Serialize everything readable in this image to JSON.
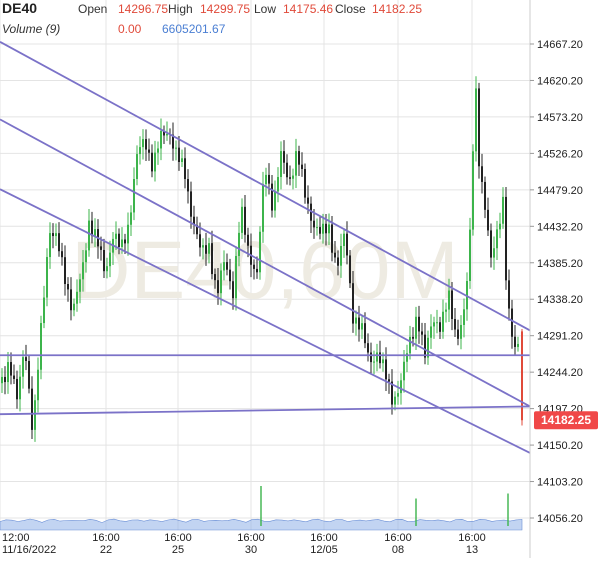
{
  "header": {
    "symbol": "DE40",
    "open_label": "Open",
    "open": "14296.75",
    "high_label": "High",
    "high": "14299.75",
    "low_label": "Low",
    "low": "14175.46",
    "close_label": "Close",
    "close": "14182.25",
    "volume_label": "Volume (9)",
    "volume_change": "0.00",
    "volume_value": "6605201.67"
  },
  "watermark": "DE40,60M",
  "colors": {
    "up": "#3cb44b",
    "down": "#222222",
    "trend_lines": "#7b72c8",
    "price_badge": "#f04848",
    "volume_area": "#8fb0e8",
    "grid": "#e4e4e4",
    "axis_text": "#222222"
  },
  "chart_data": {
    "type": "candlestick",
    "y_axis": {
      "position": "right",
      "range": [
        14030,
        14690
      ],
      "ticks": [
        "14667.20",
        "14620.20",
        "14573.20",
        "14526.20",
        "14479.20",
        "14432.20",
        "14385.20",
        "14338.20",
        "14291.20",
        "14244.20",
        "14197.20",
        "14150.20",
        "14103.20",
        "14056.20"
      ]
    },
    "x_axis": {
      "ticks": [
        {
          "label": "12:00",
          "sub": "11/16/2022",
          "x": 0
        },
        {
          "label": "16:00",
          "sub": "22",
          "x": 106
        },
        {
          "label": "16:00",
          "sub": "25",
          "x": 178
        },
        {
          "label": "16:00",
          "sub": "30",
          "x": 251
        },
        {
          "label": "16:00",
          "sub": "12/05",
          "x": 324
        },
        {
          "label": "16:00",
          "sub": "08",
          "x": 398
        },
        {
          "label": "16:00",
          "sub": "13",
          "x": 472
        }
      ]
    },
    "grid": true,
    "current_price": "14182.25",
    "price_path": [
      [
        0,
        14230
      ],
      [
        8,
        14260
      ],
      [
        16,
        14205
      ],
      [
        24,
        14285
      ],
      [
        32,
        14160
      ],
      [
        40,
        14300
      ],
      [
        48,
        14430
      ],
      [
        56,
        14410
      ],
      [
        64,
        14370
      ],
      [
        72,
        14320
      ],
      [
        80,
        14365
      ],
      [
        88,
        14440
      ],
      [
        96,
        14410
      ],
      [
        104,
        14375
      ],
      [
        112,
        14420
      ],
      [
        120,
        14400
      ],
      [
        128,
        14440
      ],
      [
        136,
        14520
      ],
      [
        144,
        14545
      ],
      [
        152,
        14510
      ],
      [
        160,
        14545
      ],
      [
        168,
        14560
      ],
      [
        176,
        14520
      ],
      [
        184,
        14500
      ],
      [
        192,
        14440
      ],
      [
        200,
        14395
      ],
      [
        208,
        14410
      ],
      [
        216,
        14340
      ],
      [
        224,
        14390
      ],
      [
        232,
        14350
      ],
      [
        240,
        14450
      ],
      [
        248,
        14400
      ],
      [
        256,
        14370
      ],
      [
        264,
        14510
      ],
      [
        272,
        14460
      ],
      [
        280,
        14520
      ],
      [
        288,
        14490
      ],
      [
        296,
        14530
      ],
      [
        304,
        14470
      ],
      [
        312,
        14440
      ],
      [
        320,
        14420
      ],
      [
        328,
        14430
      ],
      [
        336,
        14380
      ],
      [
        344,
        14420
      ],
      [
        352,
        14320
      ],
      [
        360,
        14300
      ],
      [
        368,
        14260
      ],
      [
        376,
        14270
      ],
      [
        384,
        14240
      ],
      [
        392,
        14210
      ],
      [
        400,
        14230
      ],
      [
        408,
        14280
      ],
      [
        416,
        14320
      ],
      [
        424,
        14260
      ],
      [
        432,
        14320
      ],
      [
        440,
        14300
      ],
      [
        448,
        14340
      ],
      [
        456,
        14290
      ],
      [
        464,
        14320
      ],
      [
        470,
        14440
      ],
      [
        474,
        14640
      ],
      [
        478,
        14520
      ],
      [
        482,
        14470
      ],
      [
        486,
        14430
      ],
      [
        490,
        14390
      ],
      [
        494,
        14420
      ],
      [
        498,
        14440
      ],
      [
        502,
        14460
      ],
      [
        506,
        14330
      ],
      [
        510,
        14300
      ],
      [
        514,
        14280
      ],
      [
        518,
        14290
      ],
      [
        521,
        14182.25
      ]
    ],
    "trend_lines": [
      {
        "from": [
          0,
          14670
        ],
        "to": [
          530,
          14298
        ]
      },
      {
        "from": [
          0,
          14570
        ],
        "to": [
          530,
          14200
        ]
      },
      {
        "from": [
          0,
          14480
        ],
        "to": [
          530,
          14140
        ]
      },
      {
        "from": [
          0,
          14266
        ],
        "to": [
          530,
          14266
        ]
      },
      {
        "from": [
          0,
          14190
        ],
        "to": [
          530,
          14200
        ]
      }
    ],
    "volume_spikes": [
      {
        "x": 261,
        "value": 0.8
      },
      {
        "x": 416,
        "value": 0.55
      },
      {
        "x": 508,
        "value": 0.65
      }
    ]
  }
}
